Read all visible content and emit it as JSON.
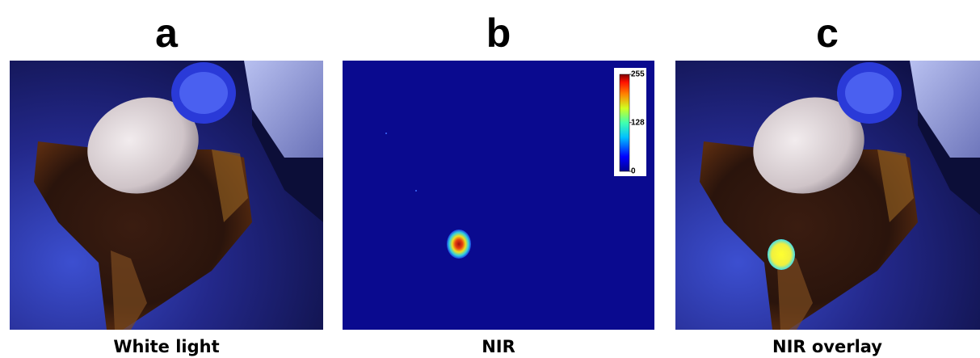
{
  "panels": [
    {
      "letter": "a",
      "caption": "White light"
    },
    {
      "letter": "b",
      "caption": "NIR"
    },
    {
      "letter": "c",
      "caption": "NIR overlay"
    }
  ],
  "colorbar": {
    "ticks": [
      255,
      128,
      0
    ]
  }
}
